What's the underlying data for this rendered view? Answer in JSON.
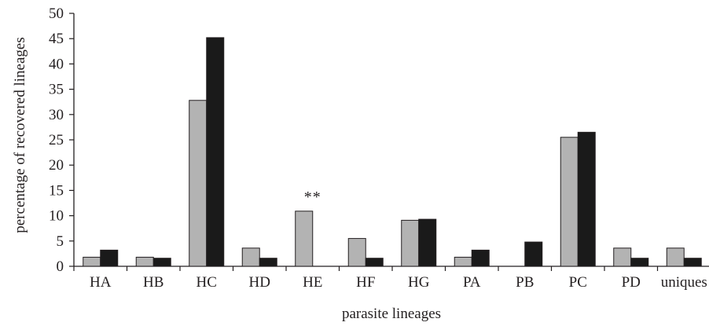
{
  "chart_data": {
    "type": "bar",
    "xlabel": "parasite lineages",
    "ylabel": "percentage of recovered lineages",
    "ylim": [
      0,
      50
    ],
    "yticks": [
      0,
      5,
      10,
      15,
      20,
      25,
      30,
      35,
      40,
      45,
      50
    ],
    "grid": false,
    "legend": "none",
    "categories": [
      "HA",
      "HB",
      "HC",
      "HD",
      "HE",
      "HF",
      "HG",
      "PA",
      "PB",
      "PC",
      "PD",
      "uniques"
    ],
    "series": [
      {
        "color": "#b3b3b3",
        "values": [
          1.8,
          1.8,
          32.8,
          3.6,
          10.9,
          5.5,
          9.1,
          1.8,
          0,
          25.5,
          3.6,
          3.6
        ]
      },
      {
        "color": "#1a1a1a",
        "values": [
          3.2,
          1.6,
          45.2,
          1.6,
          0,
          1.6,
          9.3,
          3.2,
          4.8,
          26.5,
          1.6,
          1.6
        ]
      }
    ],
    "annotations": [
      {
        "category": "HE",
        "text": "**"
      }
    ]
  }
}
